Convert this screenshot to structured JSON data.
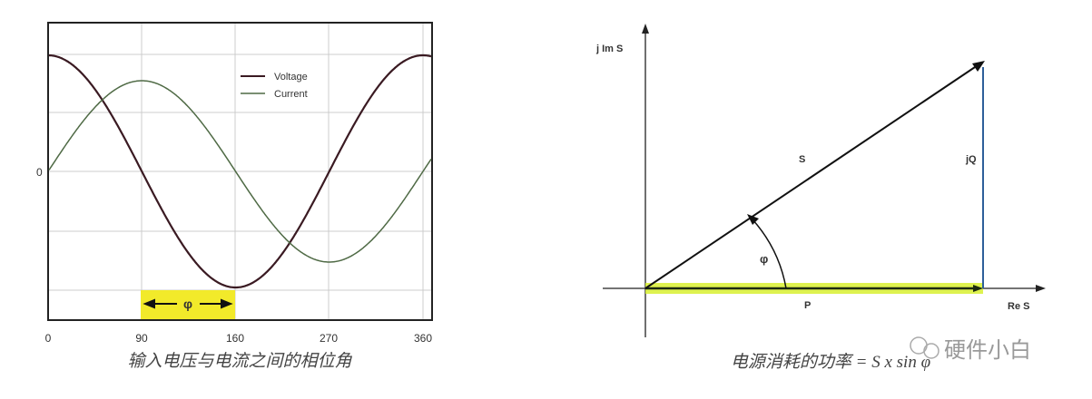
{
  "left_figure": {
    "legend": [
      "Voltage",
      "Current"
    ],
    "y_tick": "0",
    "x_ticks": [
      "0",
      "90",
      "160",
      "270",
      "360"
    ],
    "phase_label": "φ",
    "caption": "输入电压与电流之间的相位角",
    "colors": {
      "voltage": "#3a1a22",
      "current": "#4f6a45",
      "highlight": "#f2ea2a"
    }
  },
  "right_figure": {
    "y_axis_label": "j Im S",
    "x_axis_label": "Re S",
    "hypotenuse_label": "S",
    "vertical_label": "jQ",
    "horizontal_label": "P",
    "angle_label": "φ",
    "caption": "电源消耗的功率 = S x sin φ",
    "colors": {
      "vertical": "#2d5f9a",
      "highlight": "#d8f030"
    }
  },
  "watermark": "硬件小白"
}
